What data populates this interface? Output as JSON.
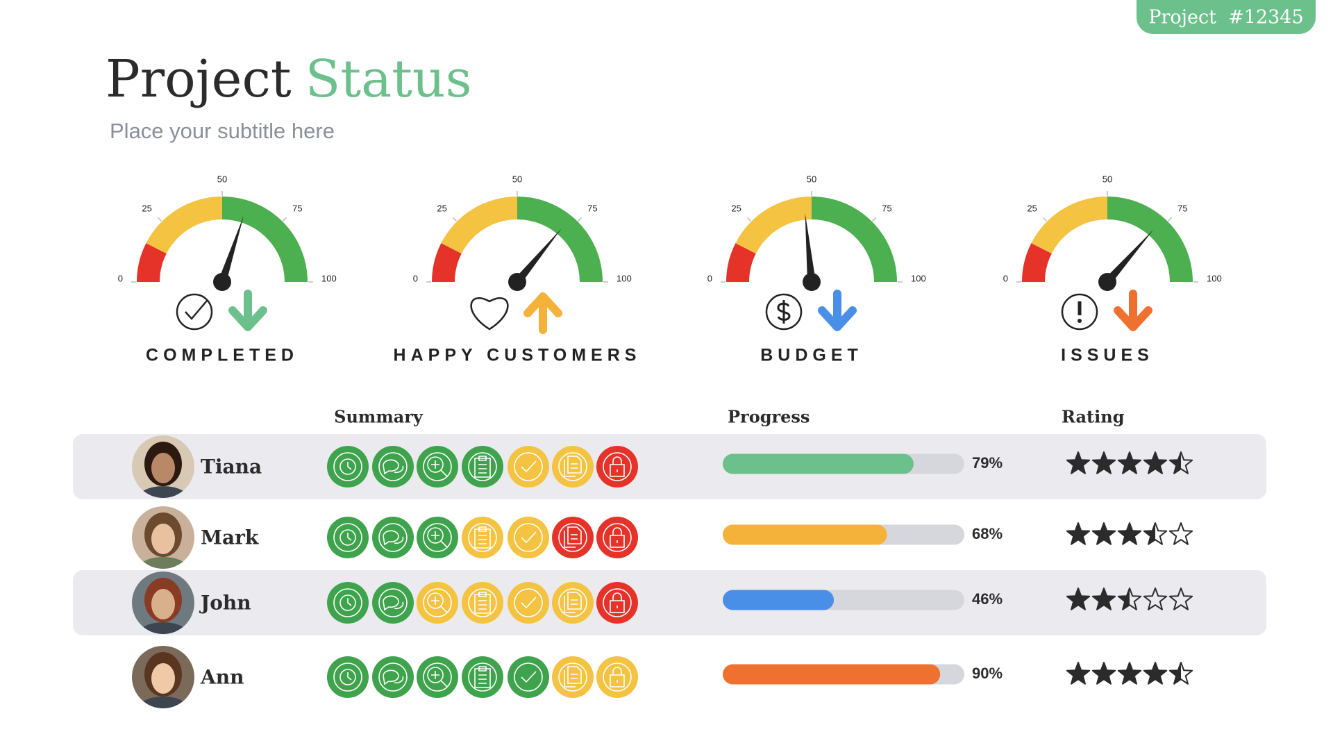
{
  "badge": "Project  #12345",
  "title": {
    "first": "Project",
    "second": "Status"
  },
  "subtitle": "Place your subtitle here",
  "gauges": {
    "ticks": [
      0,
      25,
      50,
      75,
      100
    ],
    "zones": [
      {
        "from": 0,
        "to": 15,
        "color": "#e5332a"
      },
      {
        "from": 15,
        "to": 50,
        "color": "#f5c342"
      },
      {
        "from": 50,
        "to": 100,
        "color": "#4caf50"
      }
    ],
    "items": [
      {
        "label": "COMPLETED",
        "value": 60,
        "icon": "check",
        "trend": "down",
        "trend_color": "#6cc08b"
      },
      {
        "label": "HAPPY CUSTOMERS",
        "value": 72,
        "icon": "heart",
        "trend": "up",
        "trend_color": "#f5b23a"
      },
      {
        "label": "BUDGET",
        "value": 47,
        "icon": "dollar",
        "trend": "down",
        "trend_color": "#4a8fe7"
      },
      {
        "label": "ISSUES",
        "value": 73,
        "icon": "alert",
        "trend": "down",
        "trend_color": "#ef7130"
      }
    ]
  },
  "table": {
    "headers": {
      "summary": "Summary",
      "progress": "Progress",
      "rating": "Rating"
    },
    "progress_lim": [
      0,
      100
    ],
    "rating_max": 5,
    "rows": [
      {
        "name": "Tiana",
        "status": [
          "#3fa34d",
          "#3fa34d",
          "#3fa34d",
          "#3fa34d",
          "#f5c342",
          "#f5c342",
          "#e5332a"
        ],
        "progress": 79,
        "progress_label": "79%",
        "progress_color": "#6cc08b",
        "rating": 4.5
      },
      {
        "name": "Mark",
        "status": [
          "#3fa34d",
          "#3fa34d",
          "#3fa34d",
          "#f5c342",
          "#f5c342",
          "#e5332a",
          "#e5332a"
        ],
        "progress": 68,
        "progress_label": "68%",
        "progress_color": "#f5b23a",
        "rating": 3.5
      },
      {
        "name": "John",
        "status": [
          "#3fa34d",
          "#3fa34d",
          "#f5c342",
          "#f5c342",
          "#f5c342",
          "#f5c342",
          "#e5332a"
        ],
        "progress": 46,
        "progress_label": "46%",
        "progress_color": "#4a8fe7",
        "rating": 2.5
      },
      {
        "name": "Ann",
        "status": [
          "#3fa34d",
          "#3fa34d",
          "#3fa34d",
          "#3fa34d",
          "#3fa34d",
          "#f5c342",
          "#f5c342"
        ],
        "progress": 90,
        "progress_label": "90%",
        "progress_color": "#ef7130",
        "rating": 4.5
      }
    ]
  }
}
